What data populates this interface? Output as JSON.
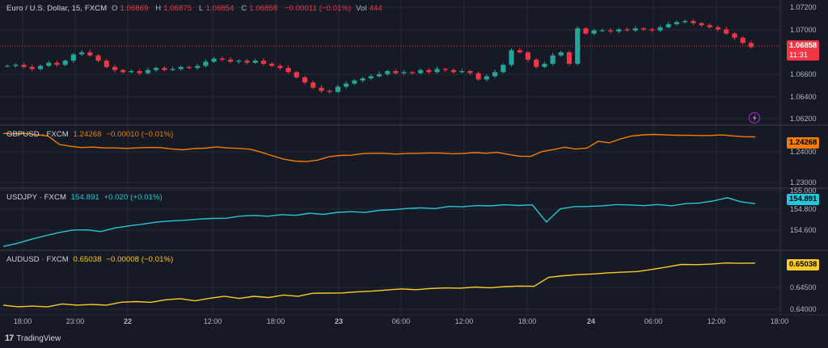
{
  "legends": {
    "main": {
      "title": "Euro / U.S. Dollar, 15, FXCM",
      "o_label": "O",
      "o": "1.06869",
      "h_label": "H",
      "h": "1.06875",
      "l_label": "L",
      "l": "1.06854",
      "c_label": "C",
      "c": "1.06858",
      "chg": "−0.00011 (−0.01%)",
      "vol_label": "Vol",
      "vol": "444"
    },
    "gbp": {
      "title": "GBPUSD · FXCM",
      "value": "1.24268",
      "chg": "−0.00010 (−0.01%)"
    },
    "jpy": {
      "title": "USDJPY · FXCM",
      "value": "154.891",
      "chg": "+0.020 (+0.01%)"
    },
    "aud": {
      "title": "AUDUSD · FXCM",
      "value": "0.65038",
      "chg": "−0.00008 (−0.01%)"
    }
  },
  "badges": {
    "main_price": "1.06858",
    "main_countdown": "11:31",
    "gbp": "1.24268",
    "jpy": "154.891",
    "aud": "0.65038"
  },
  "branding": {
    "name": "TradingView"
  },
  "colors": {
    "bg": "#161a25",
    "up": "#26a69a",
    "down": "#f23645",
    "gbp": "#f57c00",
    "jpy": "#26c6da",
    "aud": "#ffca28",
    "grid": "#262b38"
  },
  "chart_data": [
    {
      "type": "candlestick",
      "title": "Euro / U.S. Dollar, 15, FXCM",
      "ytick_labels": [
        "1.07200",
        "1.07000",
        "1.06600",
        "1.06400",
        "1.06200"
      ],
      "ylim": [
        1.0615,
        1.0725
      ],
      "xtick_labels": [
        "18:00",
        "23:00",
        "22",
        "12:00",
        "18:00",
        "23",
        "06:00",
        "12:00",
        "18:00",
        "24",
        "06:00",
        "12:00",
        "18:00"
      ],
      "close": [
        1.0668,
        1.0669,
        1.0667,
        1.0665,
        1.0668,
        1.0671,
        1.0669,
        1.0673,
        1.0679,
        1.0681,
        1.0678,
        1.0673,
        1.0667,
        1.0664,
        1.0662,
        1.0663,
        1.0661,
        1.0664,
        1.0666,
        1.0664,
        1.0665,
        1.0667,
        1.0666,
        1.0668,
        1.0672,
        1.0675,
        1.0674,
        1.0672,
        1.0673,
        1.0671,
        1.0673,
        1.067,
        1.0668,
        1.0666,
        1.0662,
        1.0657,
        1.0652,
        1.0647,
        1.0644,
        1.0643,
        1.0648,
        1.0651,
        1.0654,
        1.0656,
        1.0658,
        1.066,
        1.0663,
        1.0661,
        1.0662,
        1.0661,
        1.0664,
        1.0662,
        1.0665,
        1.0664,
        1.0662,
        1.0663,
        1.0661,
        1.0655,
        1.0658,
        1.0662,
        1.0669,
        1.0683,
        1.0681,
        1.0674,
        1.0667,
        1.067,
        1.0678,
        1.0681,
        1.067,
        1.0704,
        1.0699,
        1.0702,
        1.0702,
        1.0701,
        1.0703,
        1.0702,
        1.0704,
        1.0703,
        1.0702,
        1.0705,
        1.0708,
        1.071,
        1.0711,
        1.0709,
        1.0707,
        1.0705,
        1.0703,
        1.0699,
        1.0695,
        1.069,
        1.0686
      ],
      "volume": [
        444
      ]
    },
    {
      "type": "line",
      "series": [
        {
          "name": "GBPUSD · FXCM",
          "last": 1.24268
        }
      ],
      "ytick_labels": [
        "1.24000",
        "1.23000"
      ],
      "ylim": [
        1.2285,
        1.245
      ],
      "y": [
        1.2438,
        1.2437,
        1.2437,
        1.2434,
        1.243,
        1.2406,
        1.24,
        1.2396,
        1.2398,
        1.2395,
        1.2396,
        1.2394,
        1.2395,
        1.2397,
        1.2396,
        1.2393,
        1.239,
        1.2393,
        1.2395,
        1.2398,
        1.2396,
        1.2394,
        1.2391,
        1.2383,
        1.2372,
        1.2363,
        1.2357,
        1.2355,
        1.236,
        1.2369,
        1.2374,
        1.2374,
        1.2378,
        1.238,
        1.2379,
        1.2378,
        1.2379,
        1.2379,
        1.2381,
        1.238,
        1.2379,
        1.2379,
        1.2381,
        1.238,
        1.2382,
        1.2377,
        1.2371,
        1.237,
        1.2385,
        1.239,
        1.2398,
        1.2392,
        1.2394,
        1.2415,
        1.241,
        1.2422,
        1.243,
        1.2433,
        1.2435,
        1.2433,
        1.2433,
        1.2432,
        1.2431,
        1.2432,
        1.2433,
        1.2431,
        1.2428,
        1.2427
      ]
    },
    {
      "type": "line",
      "series": [
        {
          "name": "USDJPY · FXCM",
          "last": 154.891
        }
      ],
      "ytick_labels": [
        "155.000",
        "154.800",
        "154.600"
      ],
      "ylim": [
        154.45,
        155.01
      ],
      "y": [
        154.45,
        154.48,
        154.52,
        154.56,
        154.59,
        154.62,
        154.62,
        154.6,
        154.64,
        154.66,
        154.68,
        154.7,
        154.71,
        154.72,
        154.73,
        154.74,
        154.74,
        154.76,
        154.77,
        154.76,
        154.78,
        154.77,
        154.79,
        154.78,
        154.8,
        154.81,
        154.8,
        154.82,
        154.83,
        154.84,
        154.85,
        154.84,
        154.86,
        154.86,
        154.87,
        154.87,
        154.88,
        154.87,
        154.88,
        154.7,
        154.84,
        154.86,
        154.86,
        154.87,
        154.88,
        154.88,
        154.87,
        154.88,
        154.87,
        154.89,
        154.9,
        154.92,
        154.95,
        154.91,
        154.89
      ]
    },
    {
      "type": "line",
      "series": [
        {
          "name": "AUDUSD · FXCM",
          "last": 0.65038
        }
      ],
      "ytick_labels": [
        "0.64500",
        "0.64000"
      ],
      "ylim": [
        0.6396,
        0.6521
      ],
      "y": [
        0.6414,
        0.641,
        0.6411,
        0.641,
        0.6416,
        0.6414,
        0.6415,
        0.6413,
        0.642,
        0.6421,
        0.642,
        0.6425,
        0.6427,
        0.6423,
        0.6428,
        0.6433,
        0.6428,
        0.6432,
        0.643,
        0.6435,
        0.6433,
        0.6439,
        0.6439,
        0.644,
        0.6442,
        0.6444,
        0.6446,
        0.6448,
        0.6447,
        0.6449,
        0.6451,
        0.645,
        0.6452,
        0.6451,
        0.6453,
        0.6455,
        0.6454,
        0.6473,
        0.6477,
        0.6479,
        0.6481,
        0.6483,
        0.6484,
        0.6486,
        0.649,
        0.6496,
        0.6501,
        0.65,
        0.6502,
        0.6504,
        0.6504,
        0.6504
      ]
    }
  ]
}
